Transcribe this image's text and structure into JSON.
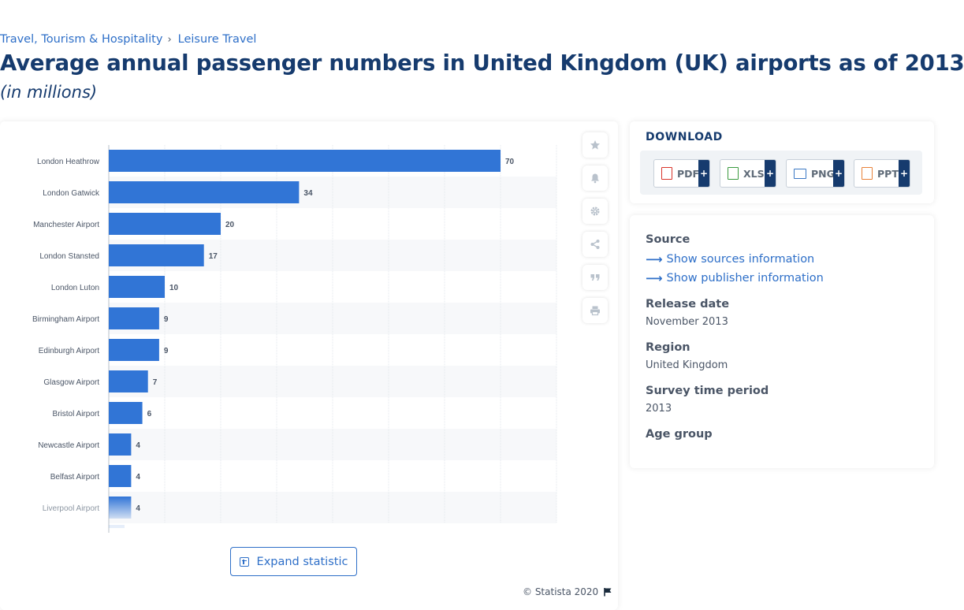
{
  "breadcrumb": {
    "items": [
      "Travel, Tourism & Hospitality",
      "Leisure Travel"
    ],
    "separator": "›"
  },
  "page": {
    "title": "Average annual passenger numbers in United Kingdom (UK) airports as of 2013",
    "subtitle": "(in millions)"
  },
  "chart_data": {
    "type": "bar",
    "orientation": "horizontal",
    "title": "Average annual passenger numbers in United Kingdom (UK) airports as of 2013",
    "unit": "millions",
    "categories": [
      "London Heathrow",
      "London Gatwick",
      "Manchester Airport",
      "London Stansted",
      "London Luton",
      "Birmingham Airport",
      "Edinburgh Airport",
      "Glasgow Airport",
      "Bristol Airport",
      "Newcastle Airport",
      "Belfast Airport",
      "Liverpool Airport"
    ],
    "values": [
      70,
      34,
      20,
      17,
      10,
      9,
      9,
      7,
      6,
      4,
      4,
      4
    ],
    "xlim": [
      0,
      80
    ],
    "grid": true,
    "bar_color": "#3175d6",
    "truncated": true
  },
  "toolbar": {
    "icons": [
      "star-icon",
      "bell-icon",
      "gear-icon",
      "share-icon",
      "quote-icon",
      "print-icon"
    ]
  },
  "expand": {
    "label": "Expand statistic"
  },
  "copyright": {
    "text": "© Statista 2020"
  },
  "download": {
    "title": "DOWNLOAD",
    "formats": [
      {
        "label": "PDF",
        "color": "#d9352b"
      },
      {
        "label": "XLS",
        "color": "#3a9a3f"
      },
      {
        "label": "PNG",
        "color": "#3b78c4"
      },
      {
        "label": "PPT",
        "color": "#e8823a"
      }
    ],
    "plus": "+"
  },
  "info": {
    "source_heading": "Source",
    "show_sources": "Show sources information",
    "show_publisher": "Show publisher information",
    "release_heading": "Release date",
    "release_value": "November 2013",
    "region_heading": "Region",
    "region_value": "United Kingdom",
    "survey_heading": "Survey time period",
    "survey_value": "2013",
    "age_heading": "Age group"
  }
}
